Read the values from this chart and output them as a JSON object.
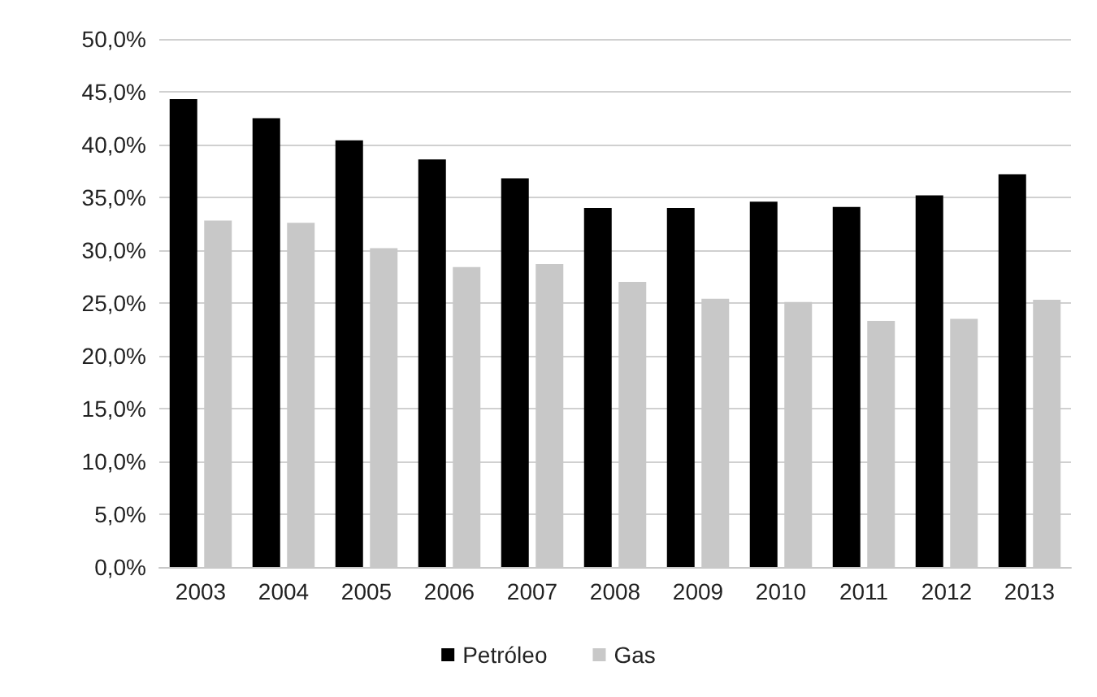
{
  "chart_data": {
    "type": "bar",
    "categories": [
      "2003",
      "2004",
      "2005",
      "2006",
      "2007",
      "2008",
      "2009",
      "2010",
      "2011",
      "2012",
      "2013"
    ],
    "series": [
      {
        "name": "Petróleo",
        "color": "#000000",
        "values": [
          44.3,
          42.5,
          40.4,
          38.6,
          36.8,
          34.0,
          34.0,
          34.6,
          34.1,
          35.2,
          37.2
        ]
      },
      {
        "name": "Gas",
        "color": "#c8c8c8",
        "values": [
          32.8,
          32.6,
          30.2,
          28.4,
          28.7,
          27.0,
          25.4,
          25.1,
          23.3,
          23.5,
          25.3
        ]
      }
    ],
    "ylim": [
      0,
      50
    ],
    "yticks": [
      {
        "value": 0,
        "label": "0,0%"
      },
      {
        "value": 5,
        "label": "5,0%"
      },
      {
        "value": 10,
        "label": "10,0%"
      },
      {
        "value": 15,
        "label": "15,0%"
      },
      {
        "value": 20,
        "label": "20,0%"
      },
      {
        "value": 25,
        "label": "25,0%"
      },
      {
        "value": 30,
        "label": "30,0%"
      },
      {
        "value": 35,
        "label": "35,0%"
      },
      {
        "value": 40,
        "label": "40,0%"
      },
      {
        "value": 45,
        "label": "45,0%"
      },
      {
        "value": 50,
        "label": "50,0%"
      }
    ],
    "grid": "y",
    "legend": "bottom"
  }
}
